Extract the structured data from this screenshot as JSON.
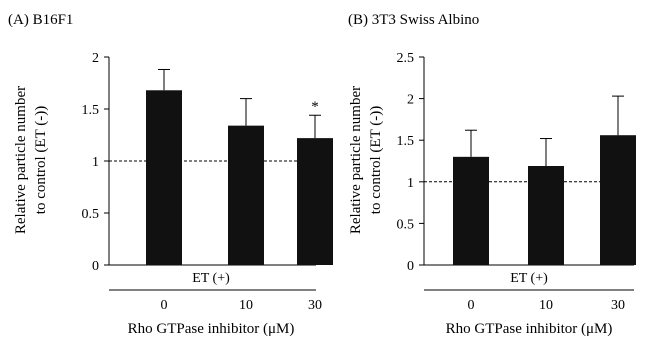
{
  "chart_data": [
    {
      "type": "bar",
      "panel_title": "(A) B16F1",
      "ylabel_lines": [
        "Relative particle number",
        "to control (ET (-))"
      ],
      "ylim": [
        0,
        2
      ],
      "yticks": [
        "0",
        "0.5",
        "1",
        "1.5",
        "2"
      ],
      "ytick_values": [
        0,
        0.5,
        1,
        1.5,
        2
      ],
      "reference_line": 1,
      "group_label": "ET (+)",
      "categories": [
        "0",
        "10",
        "30"
      ],
      "values": [
        1.68,
        1.34,
        1.22
      ],
      "errors": [
        0.2,
        0.26,
        0.22
      ],
      "significance": [
        "",
        "",
        "*"
      ],
      "xlabel": "Rho GTPase inhibitor (μM)",
      "bar_color": "#111111"
    },
    {
      "type": "bar",
      "panel_title": "(B) 3T3 Swiss Albino",
      "ylabel_lines": [
        "Relative particle number",
        "to control (ET (-))"
      ],
      "ylim": [
        0,
        2.5
      ],
      "yticks": [
        "0",
        "0.5",
        "1",
        "1.5",
        "2",
        "2.5"
      ],
      "ytick_values": [
        0,
        0.5,
        1,
        1.5,
        2,
        2.5
      ],
      "reference_line": 1,
      "group_label": "ET (+)",
      "categories": [
        "0",
        "10",
        "30"
      ],
      "values": [
        1.3,
        1.19,
        1.56
      ],
      "errors": [
        0.32,
        0.33,
        0.47
      ],
      "significance": [
        "",
        "",
        ""
      ],
      "xlabel": "Rho GTPase inhibitor (μM)",
      "bar_color": "#111111"
    }
  ]
}
